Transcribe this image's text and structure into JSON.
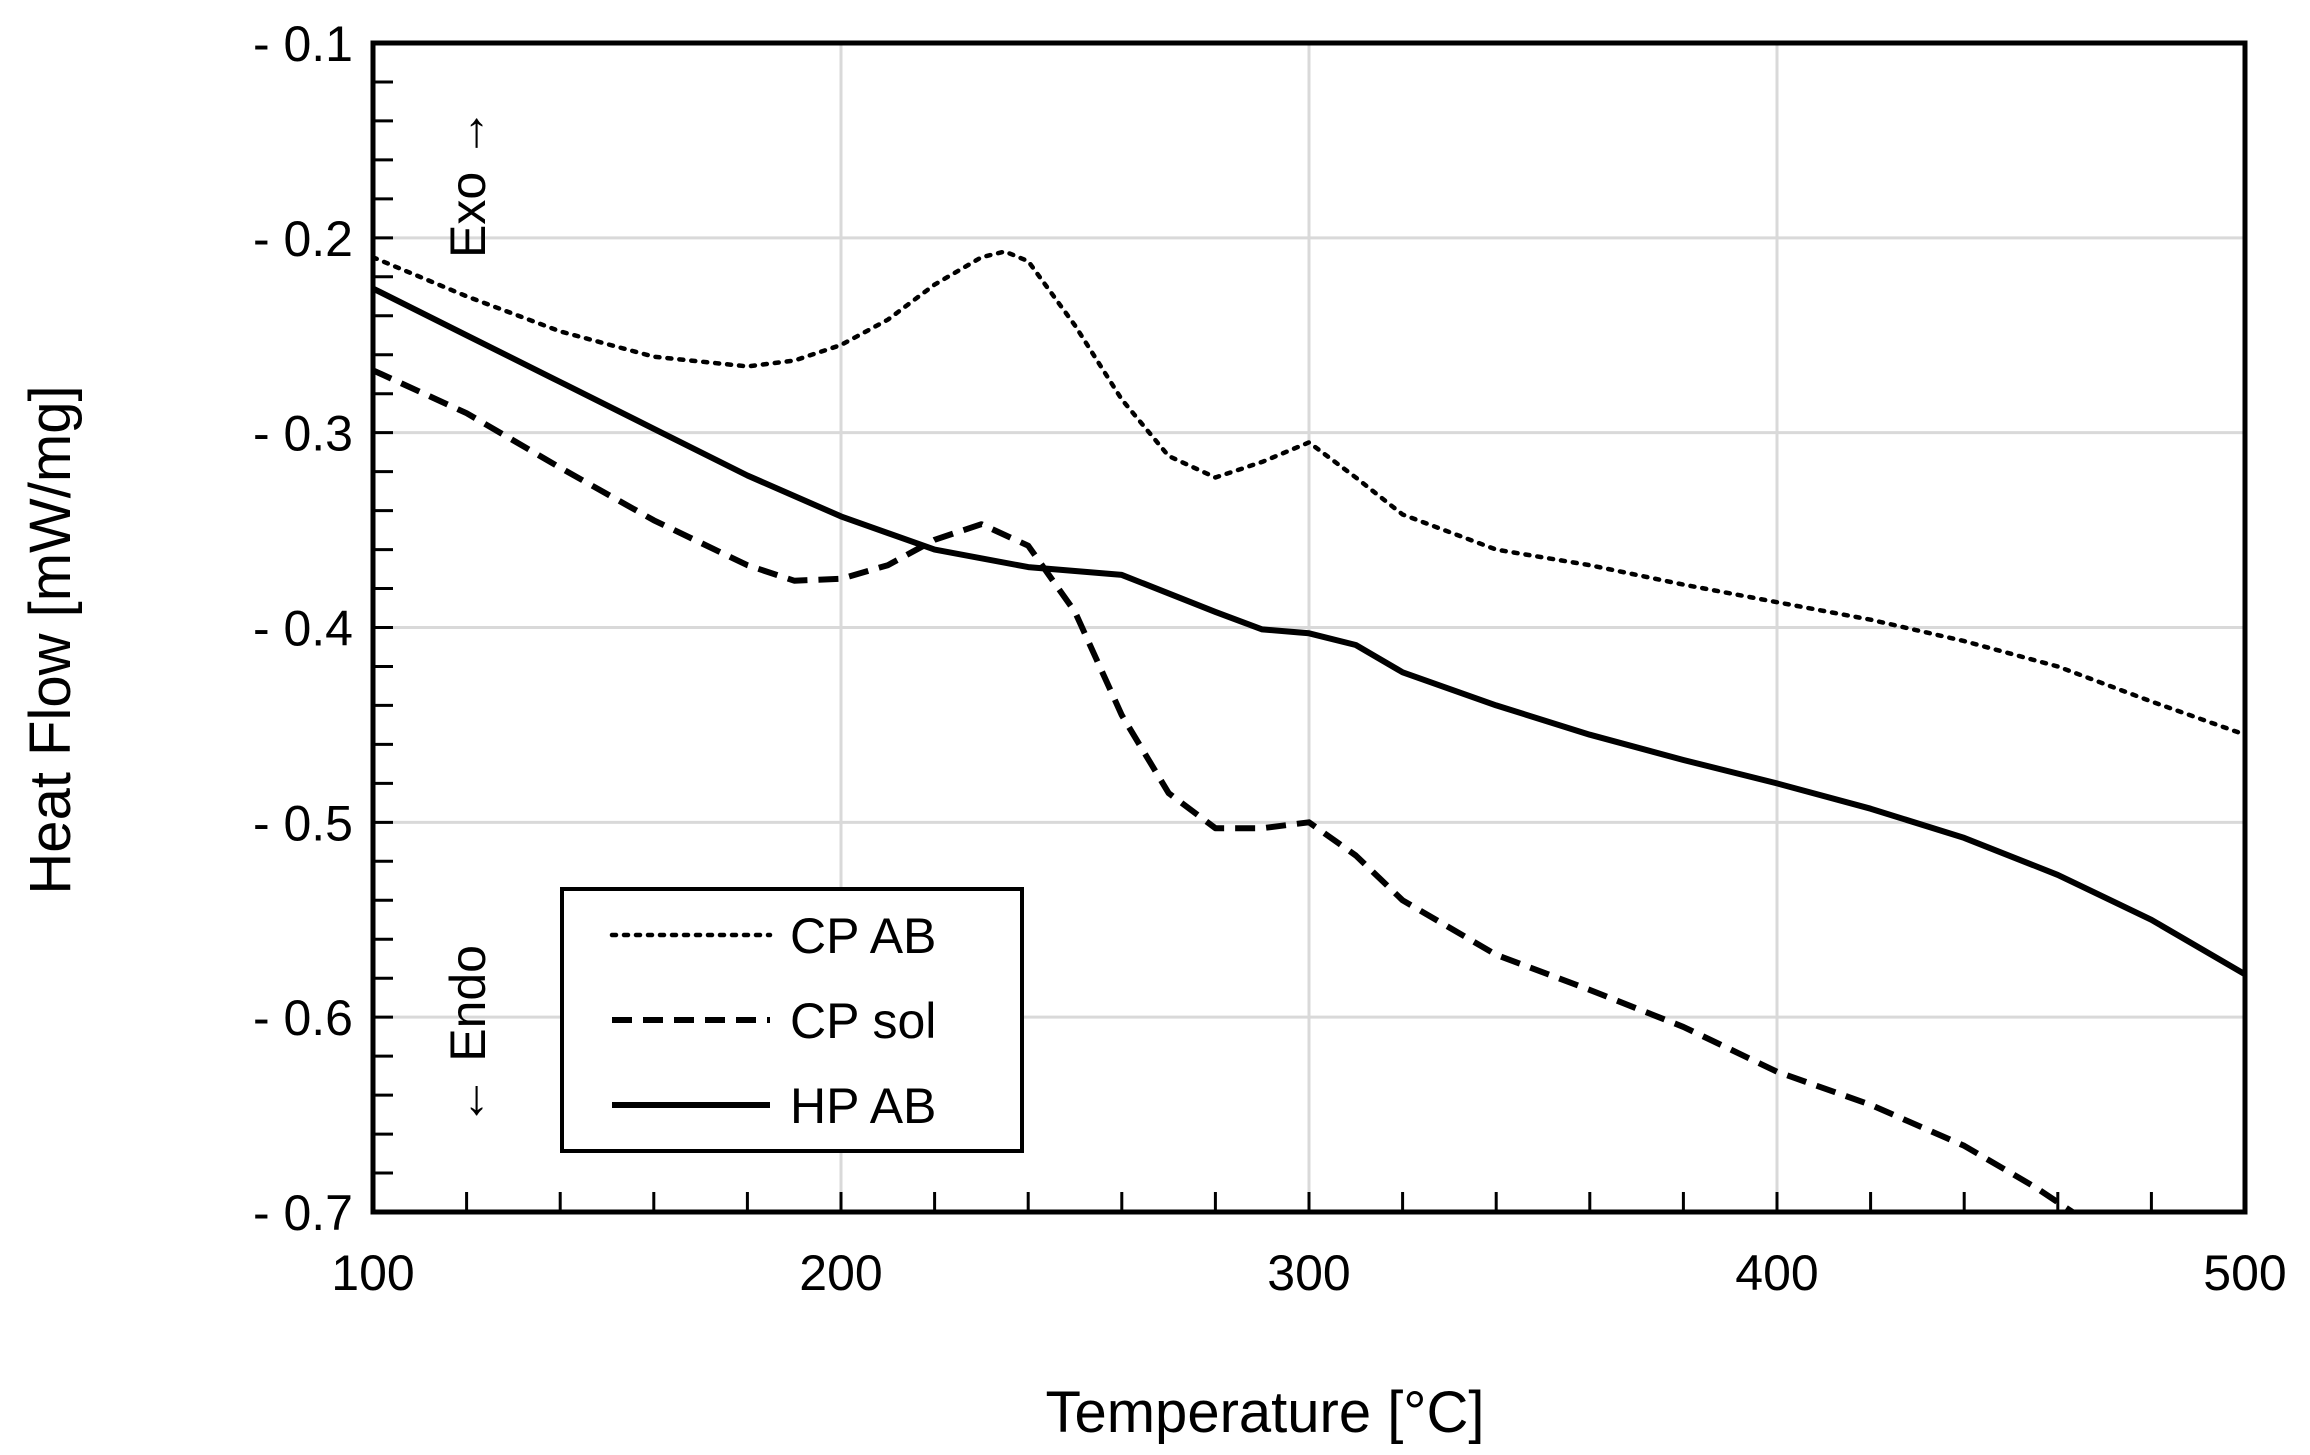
{
  "chart_data": {
    "type": "line",
    "title": "",
    "xlabel": "Temperature [°C]",
    "ylabel": "Heat Flow [mW/mg]",
    "xlim": [
      100,
      500
    ],
    "ylim": [
      -0.7,
      -0.1
    ],
    "x_ticks": [
      100,
      200,
      300,
      400,
      500
    ],
    "x_tick_labels": [
      "100",
      "200",
      "300",
      "400",
      "500"
    ],
    "y_ticks": [
      -0.1,
      -0.2,
      -0.3,
      -0.4,
      -0.5,
      -0.6,
      -0.7
    ],
    "y_tick_labels": [
      "- 0.1",
      "- 0.2",
      "- 0.3",
      "- 0.4",
      "- 0.5",
      "- 0.6",
      "- 0.7"
    ],
    "grid": true,
    "legend_position": "bottom-left",
    "annotations": {
      "exo": "Exo →",
      "endo": "← Endo"
    },
    "series": [
      {
        "name": "CP AB",
        "style": "dotted",
        "color": "#000000",
        "points": [
          [
            100,
            -0.21
          ],
          [
            120,
            -0.23
          ],
          [
            140,
            -0.248
          ],
          [
            160,
            -0.261
          ],
          [
            180,
            -0.266
          ],
          [
            190,
            -0.263
          ],
          [
            200,
            -0.255
          ],
          [
            210,
            -0.242
          ],
          [
            220,
            -0.224
          ],
          [
            230,
            -0.21
          ],
          [
            235,
            -0.207
          ],
          [
            240,
            -0.212
          ],
          [
            250,
            -0.245
          ],
          [
            260,
            -0.283
          ],
          [
            270,
            -0.312
          ],
          [
            280,
            -0.323
          ],
          [
            290,
            -0.315
          ],
          [
            300,
            -0.305
          ],
          [
            310,
            -0.323
          ],
          [
            320,
            -0.342
          ],
          [
            340,
            -0.36
          ],
          [
            360,
            -0.368
          ],
          [
            380,
            -0.378
          ],
          [
            400,
            -0.387
          ],
          [
            420,
            -0.396
          ],
          [
            440,
            -0.407
          ],
          [
            460,
            -0.42
          ],
          [
            480,
            -0.438
          ],
          [
            500,
            -0.455
          ]
        ]
      },
      {
        "name": "CP sol",
        "style": "dashed",
        "color": "#000000",
        "points": [
          [
            100,
            -0.268
          ],
          [
            120,
            -0.29
          ],
          [
            140,
            -0.318
          ],
          [
            160,
            -0.345
          ],
          [
            180,
            -0.368
          ],
          [
            190,
            -0.376
          ],
          [
            200,
            -0.375
          ],
          [
            210,
            -0.368
          ],
          [
            220,
            -0.355
          ],
          [
            230,
            -0.347
          ],
          [
            240,
            -0.358
          ],
          [
            250,
            -0.392
          ],
          [
            260,
            -0.445
          ],
          [
            270,
            -0.485
          ],
          [
            280,
            -0.503
          ],
          [
            290,
            -0.503
          ],
          [
            300,
            -0.5
          ],
          [
            310,
            -0.517
          ],
          [
            320,
            -0.54
          ],
          [
            340,
            -0.568
          ],
          [
            360,
            -0.586
          ],
          [
            380,
            -0.605
          ],
          [
            400,
            -0.628
          ],
          [
            420,
            -0.645
          ],
          [
            440,
            -0.666
          ],
          [
            455,
            -0.687
          ],
          [
            465,
            -0.703
          ]
        ]
      },
      {
        "name": "HP AB",
        "style": "solid",
        "color": "#000000",
        "points": [
          [
            100,
            -0.226
          ],
          [
            120,
            -0.25
          ],
          [
            140,
            -0.274
          ],
          [
            160,
            -0.298
          ],
          [
            180,
            -0.322
          ],
          [
            200,
            -0.343
          ],
          [
            220,
            -0.36
          ],
          [
            240,
            -0.369
          ],
          [
            260,
            -0.373
          ],
          [
            280,
            -0.392
          ],
          [
            290,
            -0.401
          ],
          [
            300,
            -0.403
          ],
          [
            310,
            -0.409
          ],
          [
            320,
            -0.423
          ],
          [
            340,
            -0.44
          ],
          [
            360,
            -0.455
          ],
          [
            380,
            -0.468
          ],
          [
            400,
            -0.48
          ],
          [
            420,
            -0.493
          ],
          [
            440,
            -0.508
          ],
          [
            460,
            -0.527
          ],
          [
            480,
            -0.55
          ],
          [
            500,
            -0.578
          ]
        ]
      }
    ]
  }
}
